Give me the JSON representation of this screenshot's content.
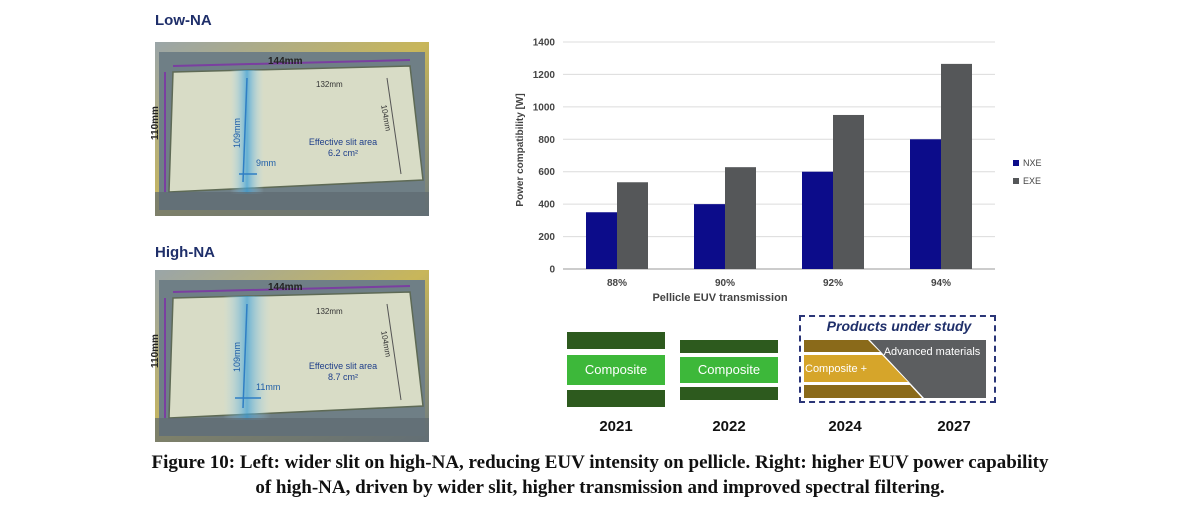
{
  "panels": [
    {
      "title": "Low-NA",
      "width_label": "144mm",
      "height_label": "110mm",
      "inner_width_label": "132mm",
      "inner_height_label": "104mm",
      "slit_length_label": "109mm",
      "slit_width_label": "9mm",
      "area_label": "Effective slit area",
      "area_value": "6.2 cm²"
    },
    {
      "title": "High-NA",
      "width_label": "144mm",
      "height_label": "110mm",
      "inner_width_label": "132mm",
      "inner_height_label": "104mm",
      "slit_length_label": "109mm",
      "slit_width_label": "11mm",
      "area_label": "Effective slit area",
      "area_value": "8.7 cm²"
    }
  ],
  "chart_data": {
    "type": "bar",
    "title": "",
    "xlabel": "Pellicle EUV transmission",
    "ylabel": "Power compatibility [W]",
    "categories": [
      "88%",
      "90%",
      "92%",
      "94%"
    ],
    "ylim": [
      0,
      1400
    ],
    "yticks": [
      0,
      200,
      400,
      600,
      800,
      1000,
      1200,
      1400
    ],
    "grid": true,
    "legend_position": "right",
    "series": [
      {
        "name": "NXE",
        "color": "#0c0c8a",
        "values": [
          350,
          400,
          600,
          800
        ]
      },
      {
        "name": "EXE",
        "color": "#555759",
        "values": [
          535,
          628,
          950,
          1265
        ]
      }
    ]
  },
  "timeline": {
    "years": [
      "2021",
      "2022",
      "2024",
      "2027"
    ],
    "composite_label": "Composite",
    "composite_plus_label": "Composite +",
    "advanced_label": "Advanced materials",
    "study_title": "Products under study"
  },
  "caption": {
    "line1": "Figure 10: Left: wider slit on high-NA, reducing EUV intensity on pellicle. Right: higher EUV power capability",
    "line2": "of high-NA, driven by wider slit, higher transmission and improved spectral filtering."
  }
}
